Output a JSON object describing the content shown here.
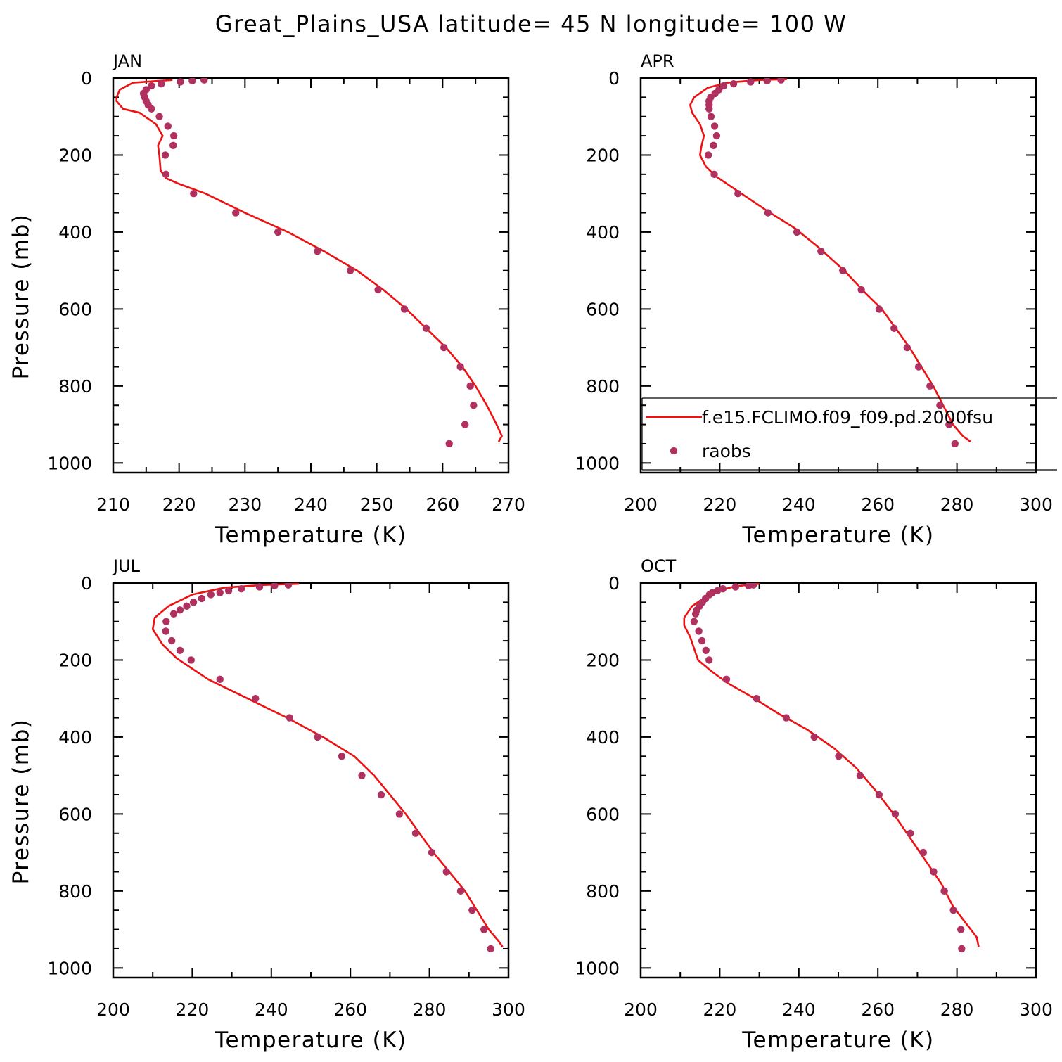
{
  "figure": {
    "title": "Great_Plains_USA  latitude= 45 N longitude= 100 W"
  },
  "colors": {
    "model": "#ee1111",
    "obs": "#b03060",
    "axis": "#000000"
  },
  "chart_data": [
    {
      "type": "line",
      "panel_label": "JAN",
      "xlabel": "Temperature (K)",
      "ylabel": "Pressure (mb)",
      "xlim": [
        210,
        270
      ],
      "ylim": [
        1025,
        0
      ],
      "xticks": [
        210,
        220,
        230,
        240,
        250,
        260,
        270
      ],
      "yticks": [
        0,
        200,
        400,
        600,
        800,
        1000
      ],
      "series": [
        {
          "name": "f.e15.FCLIMO.f09_f09.pd.2000fsu",
          "kind": "line",
          "points": [
            [
              219.0,
              5
            ],
            [
              213.0,
              12
            ],
            [
              211.0,
              30
            ],
            [
              210.5,
              50
            ],
            [
              210.5,
              60
            ],
            [
              211.5,
              80
            ],
            [
              214.0,
              90
            ],
            [
              216.5,
              120
            ],
            [
              217.5,
              150
            ],
            [
              216.8,
              175
            ],
            [
              217.0,
              200
            ],
            [
              217.2,
              240
            ],
            [
              218.0,
              260
            ],
            [
              220.0,
              275
            ],
            [
              224.0,
              300
            ],
            [
              230.0,
              350
            ],
            [
              236.5,
              400
            ],
            [
              242.0,
              450
            ],
            [
              247.0,
              500
            ],
            [
              251.0,
              550
            ],
            [
              254.5,
              600
            ],
            [
              257.5,
              650
            ],
            [
              260.5,
              700
            ],
            [
              263.0,
              750
            ],
            [
              265.0,
              800
            ],
            [
              266.7,
              850
            ],
            [
              268.2,
              900
            ],
            [
              269.0,
              930
            ],
            [
              268.5,
              945
            ]
          ]
        },
        {
          "name": "raobs",
          "kind": "scatter",
          "points": [
            [
              223.8,
              5
            ],
            [
              222.0,
              7
            ],
            [
              220.2,
              10
            ],
            [
              217.3,
              15
            ],
            [
              215.8,
              20
            ],
            [
              215.0,
              30
            ],
            [
              214.6,
              40
            ],
            [
              214.8,
              50
            ],
            [
              215.0,
              60
            ],
            [
              215.3,
              70
            ],
            [
              215.8,
              80
            ],
            [
              217.0,
              100
            ],
            [
              218.3,
              125
            ],
            [
              219.2,
              150
            ],
            [
              219.1,
              175
            ],
            [
              217.9,
              200
            ],
            [
              218.0,
              250
            ],
            [
              222.2,
              300
            ],
            [
              228.6,
              350
            ],
            [
              235.0,
              400
            ],
            [
              241.0,
              450
            ],
            [
              246.0,
              500
            ],
            [
              250.2,
              550
            ],
            [
              254.2,
              600
            ],
            [
              257.5,
              650
            ],
            [
              260.2,
              700
            ],
            [
              262.7,
              750
            ],
            [
              264.2,
              800
            ],
            [
              264.7,
              850
            ],
            [
              263.4,
              900
            ],
            [
              261.0,
              950
            ]
          ]
        }
      ]
    },
    {
      "type": "line",
      "panel_label": "APR",
      "xlabel": "Temperature (K)",
      "ylabel": "",
      "xlim": [
        200,
        300
      ],
      "ylim": [
        1025,
        0
      ],
      "xticks": [
        200,
        220,
        240,
        260,
        280,
        300
      ],
      "yticks": [
        0,
        200,
        400,
        600,
        800,
        1000
      ],
      "legend": {
        "placement": "lower-right",
        "entries": [
          "f.e15.FCLIMO.f09_f09.pd.2000fsu",
          "raobs"
        ]
      },
      "series": [
        {
          "name": "f.e15.FCLIMO.f09_f09.pd.2000fsu",
          "kind": "line",
          "points": [
            [
              237.0,
              3
            ],
            [
              230.0,
              5
            ],
            [
              222.0,
              12
            ],
            [
              217.0,
              25
            ],
            [
              213.5,
              50
            ],
            [
              212.5,
              70
            ],
            [
              213.0,
              90
            ],
            [
              215.0,
              120
            ],
            [
              216.0,
              150
            ],
            [
              215.3,
              180
            ],
            [
              215.0,
              200
            ],
            [
              216.5,
              230
            ],
            [
              219.0,
              255
            ],
            [
              224.0,
              290
            ],
            [
              232.0,
              345
            ],
            [
              239.0,
              390
            ],
            [
              245.0,
              440
            ],
            [
              251.5,
              500
            ],
            [
              257.0,
              560
            ],
            [
              261.0,
              600
            ],
            [
              264.5,
              650
            ],
            [
              268.0,
              700
            ],
            [
              271.0,
              750
            ],
            [
              274.0,
              800
            ],
            [
              276.5,
              850
            ],
            [
              279.0,
              900
            ],
            [
              281.5,
              930
            ],
            [
              283.5,
              945
            ]
          ]
        },
        {
          "name": "raobs",
          "kind": "scatter",
          "points": [
            [
              235.5,
              5
            ],
            [
              232.0,
              7
            ],
            [
              227.8,
              10
            ],
            [
              223.5,
              15
            ],
            [
              221.0,
              20
            ],
            [
              219.8,
              30
            ],
            [
              218.8,
              40
            ],
            [
              217.7,
              50
            ],
            [
              217.3,
              60
            ],
            [
              217.3,
              70
            ],
            [
              217.3,
              80
            ],
            [
              217.8,
              100
            ],
            [
              218.7,
              125
            ],
            [
              219.2,
              150
            ],
            [
              218.4,
              175
            ],
            [
              217.1,
              200
            ],
            [
              218.6,
              250
            ],
            [
              224.6,
              300
            ],
            [
              232.2,
              350
            ],
            [
              239.5,
              400
            ],
            [
              245.6,
              450
            ],
            [
              251.1,
              500
            ],
            [
              255.8,
              550
            ],
            [
              260.3,
              600
            ],
            [
              264.1,
              650
            ],
            [
              267.4,
              700
            ],
            [
              270.3,
              750
            ],
            [
              273.2,
              800
            ],
            [
              275.7,
              850
            ],
            [
              278.0,
              900
            ],
            [
              279.5,
              950
            ]
          ]
        }
      ]
    },
    {
      "type": "line",
      "panel_label": "JUL",
      "xlabel": "Temperature (K)",
      "ylabel": "Pressure (mb)",
      "xlim": [
        200,
        300
      ],
      "ylim": [
        1025,
        0
      ],
      "xticks": [
        200,
        220,
        240,
        260,
        280,
        300
      ],
      "yticks": [
        0,
        200,
        400,
        600,
        800,
        1000
      ],
      "series": [
        {
          "name": "f.e15.FCLIMO.f09_f09.pd.2000fsu",
          "kind": "line",
          "points": [
            [
              247.0,
              2
            ],
            [
              238.0,
              5
            ],
            [
              228.0,
              12
            ],
            [
              220.0,
              30
            ],
            [
              214.0,
              60
            ],
            [
              210.5,
              90
            ],
            [
              210.0,
              120
            ],
            [
              212.5,
              160
            ],
            [
              216.0,
              195
            ],
            [
              224.0,
              250
            ],
            [
              234.0,
              300
            ],
            [
              244.0,
              350
            ],
            [
              253.0,
              400
            ],
            [
              261.0,
              450
            ],
            [
              266.0,
              500
            ],
            [
              270.0,
              550
            ],
            [
              274.0,
              600
            ],
            [
              277.5,
              650
            ],
            [
              281.0,
              700
            ],
            [
              285.0,
              750
            ],
            [
              289.0,
              800
            ],
            [
              292.0,
              850
            ],
            [
              295.0,
              900
            ],
            [
              297.5,
              930
            ],
            [
              298.5,
              945
            ]
          ]
        },
        {
          "name": "raobs",
          "kind": "scatter",
          "points": [
            [
              244.3,
              5
            ],
            [
              240.8,
              7
            ],
            [
              237.0,
              10
            ],
            [
              232.4,
              15
            ],
            [
              229.2,
              20
            ],
            [
              227.0,
              25
            ],
            [
              224.7,
              30
            ],
            [
              222.4,
              40
            ],
            [
              220.3,
              50
            ],
            [
              218.6,
              60
            ],
            [
              216.9,
              70
            ],
            [
              215.3,
              80
            ],
            [
              213.4,
              100
            ],
            [
              213.3,
              125
            ],
            [
              214.8,
              150
            ],
            [
              216.9,
              175
            ],
            [
              219.7,
              200
            ],
            [
              227.0,
              250
            ],
            [
              236.0,
              300
            ],
            [
              244.6,
              350
            ],
            [
              251.7,
              400
            ],
            [
              257.8,
              450
            ],
            [
              262.9,
              500
            ],
            [
              267.8,
              550
            ],
            [
              272.4,
              600
            ],
            [
              276.5,
              650
            ],
            [
              280.6,
              700
            ],
            [
              284.3,
              750
            ],
            [
              287.9,
              800
            ],
            [
              290.8,
              850
            ],
            [
              293.8,
              900
            ],
            [
              295.5,
              950
            ]
          ]
        }
      ]
    },
    {
      "type": "line",
      "panel_label": "OCT",
      "xlabel": "Temperature (K)",
      "ylabel": "",
      "xlim": [
        200,
        300
      ],
      "ylim": [
        1025,
        0
      ],
      "xticks": [
        200,
        220,
        240,
        260,
        280,
        300
      ],
      "yticks": [
        0,
        200,
        400,
        600,
        800,
        1000
      ],
      "series": [
        {
          "name": "f.e15.FCLIMO.f09_f09.pd.2000fsu",
          "kind": "line",
          "points": [
            [
              230.0,
              2
            ],
            [
              224.0,
              8
            ],
            [
              218.0,
              25
            ],
            [
              213.0,
              60
            ],
            [
              211.0,
              90
            ],
            [
              211.0,
              110
            ],
            [
              212.5,
              140
            ],
            [
              213.5,
              170
            ],
            [
              214.5,
              200
            ],
            [
              218.0,
              230
            ],
            [
              222.0,
              260
            ],
            [
              228.0,
              295
            ],
            [
              235.0,
              340
            ],
            [
              242.0,
              380
            ],
            [
              249.0,
              430
            ],
            [
              254.5,
              480
            ],
            [
              259.5,
              540
            ],
            [
              264.0,
              600
            ],
            [
              268.0,
              660
            ],
            [
              272.0,
              720
            ],
            [
              276.0,
              780
            ],
            [
              279.0,
              840
            ],
            [
              282.0,
              880
            ],
            [
              285.0,
              920
            ],
            [
              285.5,
              945
            ]
          ]
        },
        {
          "name": "raobs",
          "kind": "scatter",
          "points": [
            [
              228.5,
              5
            ],
            [
              227.3,
              7
            ],
            [
              224.0,
              10
            ],
            [
              220.8,
              15
            ],
            [
              219.4,
              20
            ],
            [
              218.1,
              25
            ],
            [
              217.4,
              30
            ],
            [
              216.4,
              40
            ],
            [
              215.6,
              50
            ],
            [
              214.9,
              60
            ],
            [
              214.2,
              70
            ],
            [
              213.9,
              80
            ],
            [
              213.5,
              100
            ],
            [
              214.7,
              125
            ],
            [
              215.5,
              150
            ],
            [
              216.5,
              175
            ],
            [
              217.3,
              200
            ],
            [
              221.7,
              250
            ],
            [
              229.3,
              300
            ],
            [
              236.8,
              350
            ],
            [
              243.9,
              400
            ],
            [
              250.1,
              450
            ],
            [
              255.5,
              500
            ],
            [
              260.3,
              550
            ],
            [
              264.4,
              600
            ],
            [
              268.2,
              650
            ],
            [
              271.5,
              700
            ],
            [
              274.1,
              750
            ],
            [
              276.8,
              800
            ],
            [
              279.1,
              850
            ],
            [
              281.0,
              900
            ],
            [
              281.2,
              950
            ]
          ]
        }
      ]
    }
  ]
}
